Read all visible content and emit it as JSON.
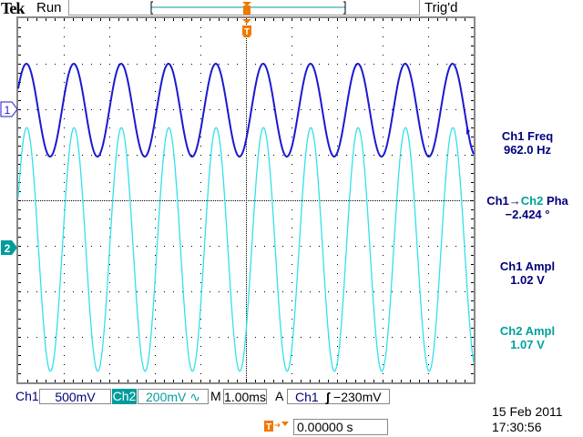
{
  "header": {
    "brand": "Tek",
    "run_state": "Run",
    "trigger_state": "Trig'd"
  },
  "channels": {
    "ch1": {
      "label": "Ch1",
      "scale": "500mV",
      "marker": "1",
      "color": "#1a1ad0",
      "volts_per_div": 0.5,
      "amplitude_v": 1.02
    },
    "ch2": {
      "label": "Ch2",
      "scale": "200mV",
      "coupling_icon": "ac-coupling-icon",
      "coupling_glyph": "∿",
      "marker": "2",
      "color": "#33e0e8",
      "volts_per_div": 0.2,
      "amplitude_v": 1.07
    }
  },
  "timebase": {
    "prefix": "M",
    "value": "1.00ms",
    "seconds_per_div": 0.001
  },
  "trigger": {
    "mode": "A",
    "source": "Ch1",
    "slope_glyph": "ʃ",
    "slope_icon": "rising-edge-icon",
    "level": "−230mV",
    "marker": "T"
  },
  "measurements": [
    {
      "label": "Ch1 Freq",
      "value": "962.0 Hz",
      "frequency_hz": 962.0
    },
    {
      "label_a": "Ch1",
      "arrow": "→",
      "label_b": "Ch2",
      "label_c": " Pha",
      "value": "−2.424 °",
      "phase_deg": -2.424
    },
    {
      "label": "Ch1 Ampl",
      "value": "1.02 V"
    },
    {
      "label": "Ch2 Ampl",
      "value": "1.07 V"
    }
  ],
  "horizontal_position": {
    "value": "0.00000 s",
    "marker": "T"
  },
  "datetime": {
    "date": "15 Feb  2011",
    "time": "17:30:56"
  },
  "colors": {
    "accent_orange": "#f07800",
    "teal": "#009c9c",
    "navy": "#00007a"
  }
}
